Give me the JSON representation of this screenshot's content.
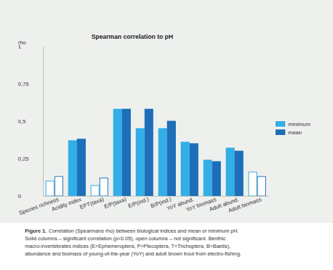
{
  "chart_data": {
    "type": "bar",
    "title": "Spearman correlation to pH",
    "y_label": "rho",
    "categories": [
      "Species richness",
      "Acidity index",
      "EPT(taxa)",
      "E/P(taxa)",
      "E/P(ind.)",
      "B/P(ind.)",
      "YoY abund.",
      "YoY biomass",
      "Adult abund.",
      "Adult biomass"
    ],
    "series": [
      {
        "name": "minimum",
        "color": "#33aee6",
        "colors": [
          "#ffffff",
          "#33aee6",
          "#ffffff",
          "#33aee6",
          "#33aee6",
          "#33aee6",
          "#33aee6",
          "#33aee6",
          "#33aee6",
          "#ffffff"
        ],
        "values": [
          0.1,
          0.37,
          0.07,
          0.58,
          0.45,
          0.45,
          0.36,
          0.24,
          0.32,
          0.16
        ]
      },
      {
        "name": "mean",
        "color": "#1c6fb8",
        "colors": [
          "#ffffff",
          "#1c6fb8",
          "#ffffff",
          "#1c6fb8",
          "#1c6fb8",
          "#1c6fb8",
          "#1c6fb8",
          "#1c6fb8",
          "#1c6fb8",
          "#ffffff"
        ],
        "values": [
          0.13,
          0.38,
          0.12,
          0.58,
          0.58,
          0.5,
          0.35,
          0.23,
          0.3,
          0.13
        ]
      }
    ],
    "ylim": [
      0,
      1
    ],
    "yticks": [
      0,
      {
        "value": 0.25,
        "label": "0,25"
      },
      {
        "value": 0.5,
        "label": "0,5"
      },
      {
        "value": 0.75,
        "label": "0,75"
      },
      1
    ],
    "grid": false,
    "legend": "right",
    "caption": {
      "label": "Figure 1.",
      "lines": [
        "Correlation (Spearmans rho) between biological indices and mean or minimum pH.",
        "Solid columns – significant correlation (p<0.05), open columns – not significant. Benthic",
        "macro-invertebrates indices (E=Ephemeroptera, P=Plecoptera, T=Trichoptera, B=Baetis),",
        "abundance and biomass of young-of-the-year (YoY) and adult brown trout from electro-fishing."
      ]
    }
  }
}
